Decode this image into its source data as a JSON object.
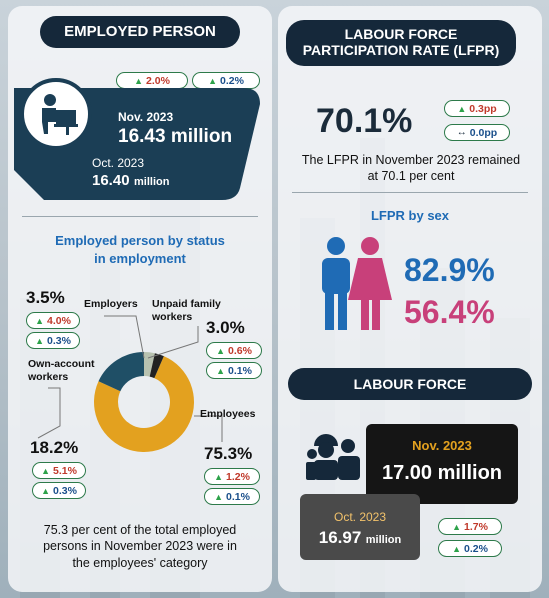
{
  "employed": {
    "title": "EMPLOYED PERSON",
    "chip_current": "2.0%",
    "chip_previous": "0.2%",
    "nov_label": "Nov. 2023",
    "nov_value": "16.43 million",
    "oct_label": "Oct. 2023",
    "oct_value": "16.40",
    "oct_unit": "million"
  },
  "status": {
    "title_line1": "Employed person by status",
    "title_line2": "in employment",
    "chart_data": {
      "type": "pie",
      "categories": [
        "Employees",
        "Own-account workers",
        "Employers",
        "Unpaid family workers"
      ],
      "values": [
        75.3,
        18.2,
        3.5,
        3.0
      ]
    },
    "employers": {
      "label": "Employers",
      "pct": "3.5%",
      "chip1": "4.0%",
      "chip2": "0.3%"
    },
    "unpaid": {
      "label_line1": "Unpaid family",
      "label_line2": "workers",
      "pct": "3.0%",
      "chip1": "0.6%",
      "chip2": "0.1%"
    },
    "own_account": {
      "label_line1": "Own-account",
      "label_line2": "workers",
      "pct": "18.2%",
      "chip1": "5.1%",
      "chip2": "0.3%"
    },
    "employees": {
      "label": "Employees",
      "pct": "75.3%",
      "chip1": "1.2%",
      "chip2": "0.1%"
    },
    "colors": {
      "employees": "#e3a11f",
      "own_account": "#1f4f66",
      "employers": "#b8c2b0",
      "unpaid": "#222222"
    },
    "note_line1": "75.3 per cent of the total employed",
    "note_line2": "persons in November 2023 were in",
    "note_line3": "the employees' category"
  },
  "lfpr": {
    "title_line1": "LABOUR FORCE",
    "title_line2": "PARTICIPATION RATE (LFPR)",
    "value": "70.1%",
    "chip_up": "0.3pp",
    "chip_flat": "0.0pp",
    "note_line1": "The LFPR in November 2023 remained",
    "note_line2": "at 70.1 per cent",
    "by_sex_title": "LFPR by sex",
    "male": "82.9%",
    "female": "56.4%",
    "male_color": "#1f6bb5",
    "female_color": "#c8407a"
  },
  "labour_force": {
    "title": "LABOUR FORCE",
    "nov_label": "Nov. 2023",
    "nov_value": "17.00 million",
    "oct_label": "Oct. 2023",
    "oct_value": "16.97",
    "oct_unit": "million",
    "chip1": "1.7%",
    "chip2": "0.2%"
  }
}
